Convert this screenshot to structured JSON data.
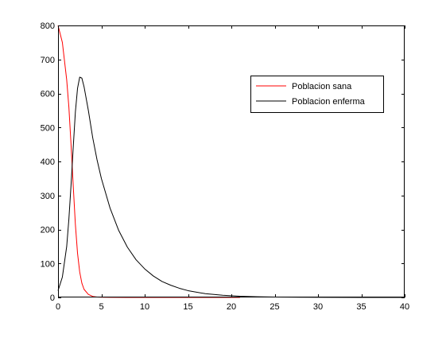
{
  "chart_data": {
    "type": "line",
    "title": "",
    "xlabel": "",
    "ylabel": "",
    "xlim": [
      0,
      40
    ],
    "ylim": [
      0,
      800
    ],
    "xticks": [
      0,
      5,
      10,
      15,
      20,
      25,
      30,
      35,
      40
    ],
    "yticks": [
      0,
      100,
      200,
      300,
      400,
      500,
      600,
      700,
      800
    ],
    "grid": false,
    "legend_position": "top-right",
    "series": [
      {
        "name": "Poblacion sana",
        "color": "#ff0000",
        "x": [
          0,
          0.5,
          1.0,
          1.25,
          1.5,
          1.75,
          2.0,
          2.25,
          2.5,
          2.75,
          3.0,
          3.5,
          4.0,
          4.5,
          5.0,
          6.0,
          8.0,
          10.0,
          15.0,
          21.0
        ],
        "y": [
          800,
          750,
          640,
          560,
          450,
          330,
          215,
          130,
          75,
          42,
          24,
          9,
          3,
          1.2,
          0.5,
          0.2,
          0.1,
          0.1,
          0.1,
          0.1
        ]
      },
      {
        "name": "Poblacion enferma",
        "color": "#000000",
        "x": [
          0,
          0.5,
          1.0,
          1.25,
          1.5,
          1.75,
          2.0,
          2.25,
          2.5,
          2.75,
          3.0,
          3.5,
          4.0,
          4.5,
          5.0,
          6.0,
          7.0,
          8.0,
          9.0,
          10.0,
          11.0,
          12.0,
          13.0,
          14.0,
          15.0,
          17.0,
          19.0,
          21.0,
          23.0,
          25.0,
          28.0,
          31.0,
          35.0,
          40.0
        ],
        "y": [
          20,
          60,
          150,
          230,
          330,
          440,
          545,
          615,
          648,
          645,
          620,
          550,
          470,
          405,
          350,
          263,
          197,
          148,
          111,
          84,
          63,
          47,
          36,
          27,
          20,
          11,
          6.4,
          3.6,
          2.0,
          1.2,
          0.5,
          0.2,
          0.1,
          0
        ]
      }
    ]
  }
}
